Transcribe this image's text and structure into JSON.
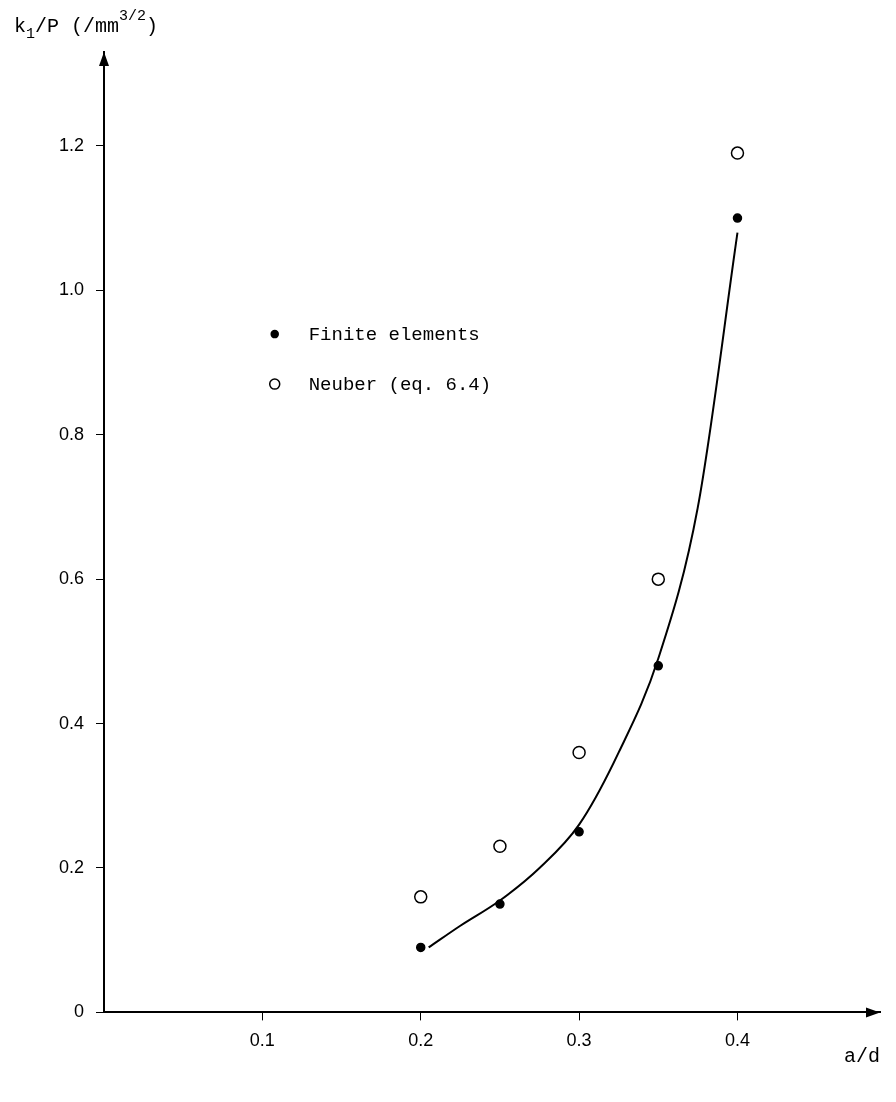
{
  "chart_data": {
    "type": "scatter",
    "xlabel": "a/d",
    "ylabel": "k$_{1}$/P (/mm$^{3/2}$)",
    "xlim": [
      0,
      0.49
    ],
    "ylim": [
      0,
      1.33
    ],
    "xticks": [
      0.1,
      0.2,
      0.3,
      0.4
    ],
    "yticks": [
      0,
      0.2,
      0.4,
      0.6,
      0.8,
      {
        "value": 1,
        "label": "1.0"
      },
      1.2
    ],
    "grid": false,
    "legend": "top left",
    "marker": "circle",
    "series": [
      {
        "name": "Finite elements",
        "color": "#000000",
        "x": [
          0.2,
          0.25,
          0.3,
          0.35,
          0.4
        ],
        "values": [
          0.09,
          0.15,
          0.25,
          0.48,
          1.1
        ]
      },
      {
        "name": "Neuber (eq. 6.4)",
        "color": "#000000",
        "x": [
          0.2,
          0.25,
          0.3,
          0.35,
          0.4
        ],
        "values": [
          0.16,
          0.23,
          0.36,
          0.6,
          1.19
        ]
      },
      {
        "type": "line",
        "color": "#000000",
        "marker": "none",
        "x": [
          0.205,
          0.225,
          0.25,
          0.275,
          0.3,
          0.325,
          0.35,
          0.375,
          0.4
        ],
        "values": [
          0.09,
          0.12,
          0.155,
          0.2,
          0.26,
          0.36,
          0.49,
          0.7,
          1.08
        ]
      }
    ]
  }
}
